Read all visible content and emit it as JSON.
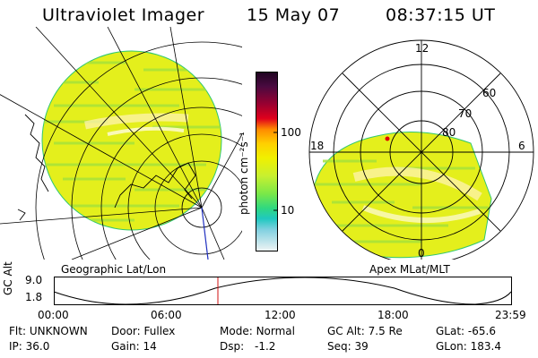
{
  "header": {
    "title": "Ultraviolet Imager",
    "date": "15 May 07",
    "time": "08:37:15 UT"
  },
  "colorbar": {
    "unit_label": "photon cm⁻²s⁻¹",
    "tick_100": "100",
    "tick_10": "10",
    "colors": [
      "#2c0a24",
      "#5b0a3c",
      "#a8002a",
      "#e0001c",
      "#ff7a00",
      "#ffb300",
      "#ffe000",
      "#e8f000",
      "#c8f030",
      "#8af040",
      "#40e060",
      "#20d0a0",
      "#20b0c8",
      "#a0d8e0",
      "#e8f0f0"
    ]
  },
  "left_panel": {
    "caption": "Geographic Lat/Lon"
  },
  "right_panel": {
    "caption": "Apex MLat/MLT",
    "mlt_labels": {
      "top": "12",
      "left": "18",
      "right": "6",
      "bottom": "0"
    },
    "lat_labels": [
      "60",
      "70",
      "80"
    ]
  },
  "altitude_plot": {
    "ylabel": "GC Alt",
    "y_top": "9.0",
    "y_bottom": "1.8",
    "x_ticks": [
      "00:00",
      "06:00",
      "12:00",
      "18:00",
      "23:59"
    ]
  },
  "info": {
    "flt_label": "Flt:",
    "flt_value": "UNKNOWN",
    "ip_label": "IP:",
    "ip_value": "36.0",
    "door_label": "Door:",
    "door_value": "Fullex",
    "gain_label": "Gain:",
    "gain_value": "14",
    "mode_label": "Mode:",
    "mode_value": "Normal",
    "dsp_label": "Dsp:",
    "dsp_value": "-1.2",
    "gcalt_label": "GC Alt:",
    "gcalt_value": "7.5 Re",
    "seq_label": "Seq:",
    "seq_value": "39",
    "glat_label": "GLat:",
    "glat_value": "-65.6",
    "glon_label": "GLon:",
    "glon_value": "183.4"
  }
}
